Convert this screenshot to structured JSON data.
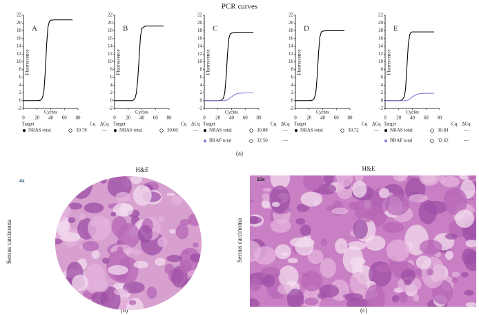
{
  "title": "PCR curves",
  "chart_data": [
    {
      "type": "line",
      "panel": "A",
      "x": [
        0,
        10,
        20,
        25,
        28,
        30,
        32,
        34,
        36,
        38,
        40,
        45,
        50,
        60,
        72
      ],
      "series": [
        {
          "name": "NRAS total",
          "color": "#000000",
          "values": [
            0,
            0,
            0,
            0.1,
            0.8,
            2.5,
            7.5,
            14.5,
            19,
            20.4,
            20.7,
            20.8,
            20.8,
            20.8,
            20.8
          ],
          "cq": "30.78",
          "delta_cq": "—"
        }
      ],
      "xlim": [
        0,
        80
      ],
      "xticks": [
        0,
        20,
        40,
        60,
        80
      ],
      "ylim": [
        -2,
        22
      ],
      "yticks": [
        -2,
        0,
        2,
        4,
        6,
        8,
        10,
        12,
        14,
        16,
        18,
        20,
        22
      ],
      "xlabel": "Cycles",
      "ylabel": "Fluorescence",
      "table_headers": [
        "Target",
        "Cq",
        "ΔCq"
      ]
    },
    {
      "type": "line",
      "panel": "B",
      "x": [
        0,
        10,
        20,
        25,
        28,
        30,
        32,
        34,
        36,
        38,
        40,
        45,
        50,
        60,
        72
      ],
      "series": [
        {
          "name": "NRAS total",
          "color": "#000000",
          "values": [
            0,
            0,
            0,
            0,
            0.2,
            0.6,
            2,
            5.5,
            11,
            16.5,
            18.6,
            19.2,
            19.2,
            19.2,
            19.2
          ],
          "cq": "30.60",
          "delta_cq": "—"
        }
      ],
      "xlim": [
        0,
        80
      ],
      "xticks": [
        0,
        20,
        40,
        60,
        80
      ],
      "ylim": [
        -2,
        22
      ],
      "yticks": [
        -2,
        0,
        2,
        4,
        6,
        8,
        10,
        12,
        14,
        16,
        18,
        20,
        22
      ],
      "xlabel": "Cycles",
      "ylabel": "Fluorescence",
      "table_headers": [
        "Target",
        "Cq",
        "ΔCq"
      ]
    },
    {
      "type": "line",
      "panel": "C",
      "x": [
        0,
        10,
        20,
        25,
        28,
        30,
        32,
        34,
        36,
        38,
        40,
        45,
        50,
        60,
        72
      ],
      "series": [
        {
          "name": "NRAS total",
          "color": "#000000",
          "values": [
            0,
            0,
            0,
            0.1,
            0.6,
            2,
            6,
            12,
            16,
            17.2,
            17.4,
            17.5,
            17.5,
            17.5,
            17.5
          ],
          "cq": "30.88",
          "delta_cq": "—"
        },
        {
          "name": "BRAF total",
          "color": "#7b7bd4",
          "values": [
            0,
            0,
            0,
            0,
            0,
            0,
            0.1,
            0.2,
            0.4,
            0.7,
            1,
            1.6,
            1.9,
            2,
            2
          ],
          "cq": "32.50",
          "delta_cq": "—"
        }
      ],
      "xlim": [
        0,
        80
      ],
      "xticks": [
        0,
        20,
        40,
        60,
        80
      ],
      "ylim": [
        -2,
        22
      ],
      "yticks": [
        -2,
        0,
        2,
        4,
        6,
        8,
        10,
        12,
        14,
        16,
        18,
        20,
        22
      ],
      "xlabel": "Cycles",
      "ylabel": "Fluorescence",
      "table_headers": [
        "Target",
        "Cq",
        "ΔCq"
      ]
    },
    {
      "type": "line",
      "panel": "D",
      "x": [
        0,
        10,
        20,
        25,
        28,
        30,
        32,
        34,
        36,
        38,
        40,
        45,
        50,
        60,
        72
      ],
      "series": [
        {
          "name": "NRAS total",
          "color": "#000000",
          "values": [
            0,
            0,
            0,
            0.1,
            0.7,
            2.2,
            6.3,
            12.5,
            16.5,
            17.7,
            17.9,
            18,
            18,
            18,
            18
          ],
          "cq": "30.72",
          "delta_cq": "—"
        }
      ],
      "xlim": [
        0,
        80
      ],
      "xticks": [
        0,
        20,
        40,
        60,
        80
      ],
      "ylim": [
        -2,
        22
      ],
      "yticks": [
        -2,
        0,
        2,
        4,
        6,
        8,
        10,
        12,
        14,
        16,
        18,
        20,
        22
      ],
      "xlabel": "Cycles",
      "ylabel": "Fluorescence",
      "table_headers": [
        "Target",
        "Cq",
        "ΔCq"
      ]
    },
    {
      "type": "line",
      "panel": "E",
      "x": [
        0,
        10,
        20,
        25,
        28,
        30,
        32,
        34,
        36,
        38,
        40,
        45,
        50,
        60,
        72
      ],
      "series": [
        {
          "name": "NRAS total",
          "color": "#000000",
          "values": [
            0,
            0,
            0,
            0.2,
            1,
            3,
            8.8,
            14.5,
            17,
            17.6,
            17.7,
            17.7,
            17.7,
            17.7,
            17.7
          ],
          "cq": "30.84",
          "delta_cq": "—"
        },
        {
          "name": "BRAF total",
          "color": "#7b7bd4",
          "values": [
            0,
            0,
            0,
            0,
            0,
            0,
            0.1,
            0.2,
            0.4,
            0.7,
            1,
            1.5,
            1.8,
            1.9,
            1.9
          ],
          "cq": "32.62",
          "delta_cq": "—"
        }
      ],
      "xlim": [
        0,
        80
      ],
      "xticks": [
        0,
        20,
        40,
        60,
        80
      ],
      "ylim": [
        -2,
        22
      ],
      "yticks": [
        -2,
        0,
        2,
        4,
        6,
        8,
        10,
        12,
        14,
        16,
        18,
        20,
        22
      ],
      "xlabel": "Cycles",
      "ylabel": "Fluorescence",
      "table_headers": [
        "Target",
        "Cq",
        "ΔCq"
      ]
    }
  ],
  "panel_labels": [
    "(a)",
    "(b)",
    "(c)"
  ],
  "images": [
    {
      "title": "H&E",
      "magnification": "4x",
      "side_label": "Serous carcinoma"
    },
    {
      "title": "H&E",
      "magnification": "10x",
      "side_label": "Serous carcinoma"
    }
  ]
}
